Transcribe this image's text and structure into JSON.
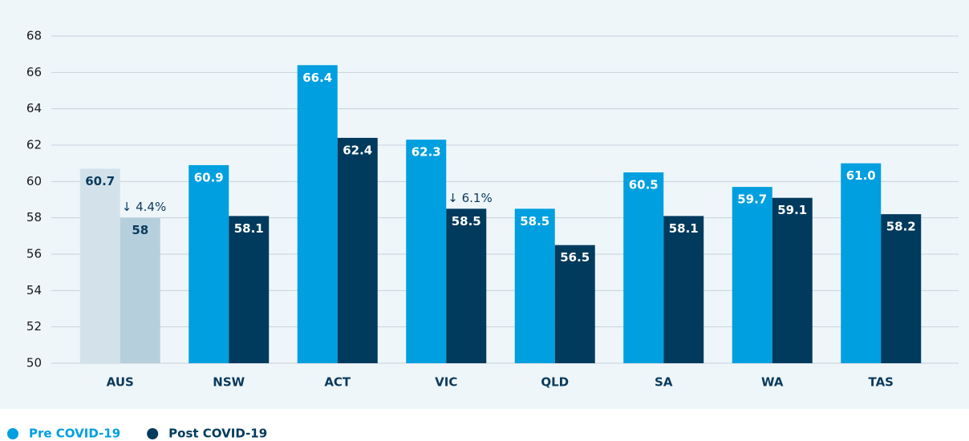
{
  "chart_data": {
    "type": "bar",
    "categories": [
      "AUS",
      "NSW",
      "ACT",
      "VIC",
      "QLD",
      "SA",
      "WA",
      "TAS"
    ],
    "series": [
      {
        "name": "Pre COVID-19",
        "color": "#009fdf",
        "values": [
          60.7,
          60.9,
          66.4,
          62.3,
          58.5,
          60.5,
          59.7,
          61
        ],
        "value_labels": [
          "60.7",
          "60.9",
          "66.4",
          "62.3",
          "58.5",
          "60.5",
          "59.7",
          "61.0"
        ],
        "colors": [
          "#d3e2ea",
          "#009fdf",
          "#009fdf",
          "#009fdf",
          "#009fdf",
          "#009fdf",
          "#009fdf",
          "#009fdf"
        ],
        "label_colors": [
          "#0a3a5c",
          "#ffffff",
          "#ffffff",
          "#ffffff",
          "#ffffff",
          "#ffffff",
          "#ffffff",
          "#ffffff"
        ],
        "annotations": [
          null,
          null,
          null,
          null,
          null,
          null,
          null,
          null
        ]
      },
      {
        "name": "Post COVID-19",
        "color": "#003a5d",
        "values": [
          58,
          58.1,
          62.4,
          58.5,
          56.5,
          58.1,
          59.1,
          58.2
        ],
        "value_labels": [
          "58",
          "58.1",
          "62.4",
          "58.5",
          "56.5",
          "58.1",
          "59.1",
          "58.2"
        ],
        "colors": [
          "#b6cfdd",
          "#003a5d",
          "#003a5d",
          "#003a5d",
          "#003a5d",
          "#003a5d",
          "#003a5d",
          "#003a5d"
        ],
        "label_colors": [
          "#0a3a5c",
          "#ffffff",
          "#ffffff",
          "#ffffff",
          "#ffffff",
          "#ffffff",
          "#ffffff",
          "#ffffff"
        ],
        "annotations": [
          "↓ 4.4%",
          null,
          null,
          "↓ 6.1%",
          null,
          null,
          null,
          null
        ]
      }
    ],
    "ylim": [
      50,
      68
    ],
    "yticks": [
      50,
      52,
      54,
      56,
      58,
      60,
      62,
      64,
      66,
      68
    ],
    "grid": true
  }
}
